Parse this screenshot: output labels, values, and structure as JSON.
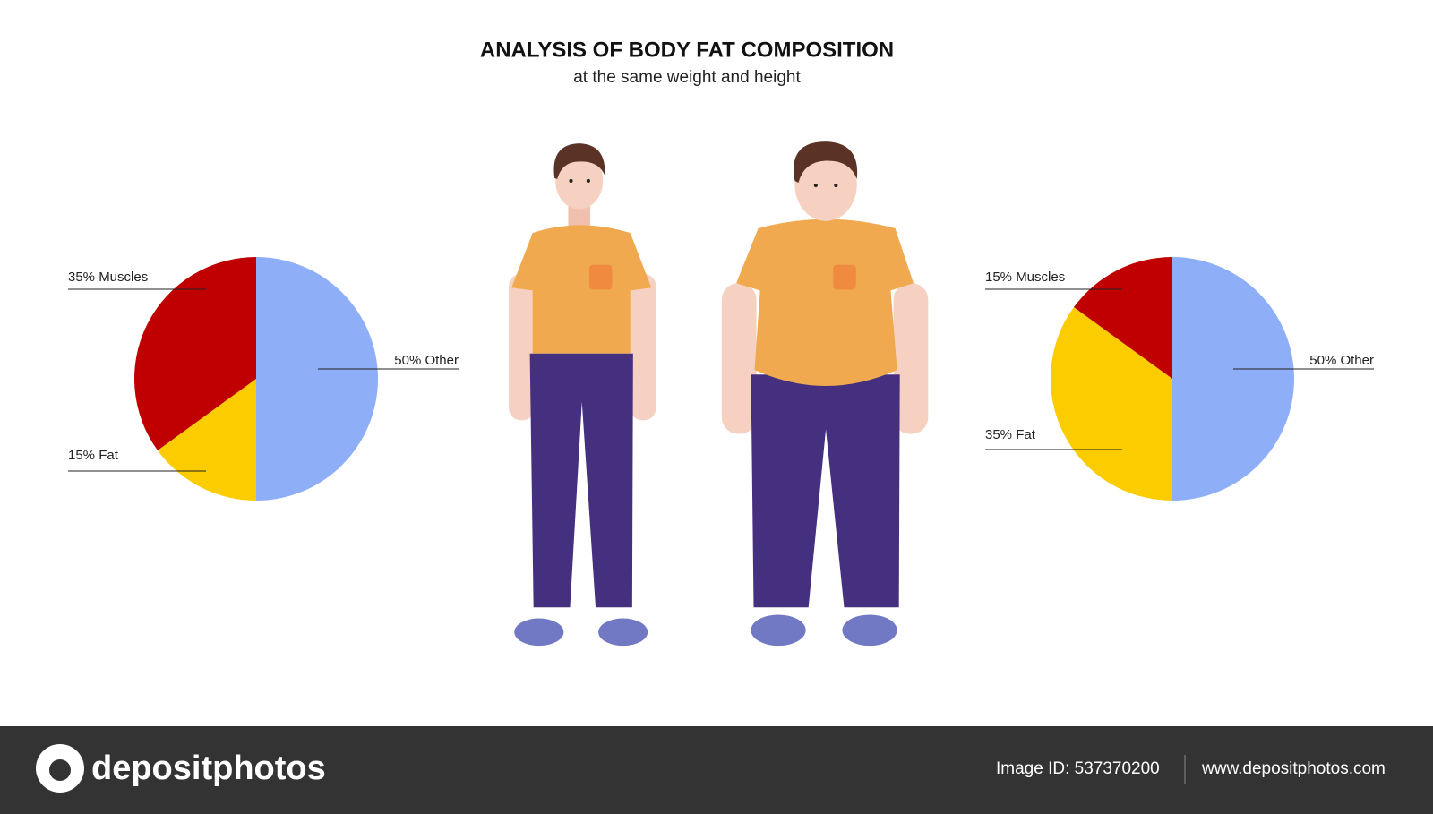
{
  "title": "ANALYSIS OF BODY FAT COMPOSITION",
  "subtitle": "at the same weight and height",
  "chart_data": [
    {
      "type": "pie",
      "values": [
        50,
        15,
        35
      ],
      "value_labels": [
        "50% Other",
        "15% Fat",
        "35% Muscles"
      ],
      "colors": [
        "#8faef8",
        "#fbcc00",
        "#c00000"
      ]
    },
    {
      "type": "pie",
      "values": [
        50,
        35,
        15
      ],
      "value_labels": [
        "50% Other",
        "35% Fat",
        "15% Muscles"
      ],
      "colors": [
        "#8faef8",
        "#fbcc00",
        "#c00000"
      ]
    }
  ],
  "footer": {
    "brand": "depositphotos",
    "image_id": "Image ID: 537370200",
    "url": "www.depositphotos.com"
  }
}
